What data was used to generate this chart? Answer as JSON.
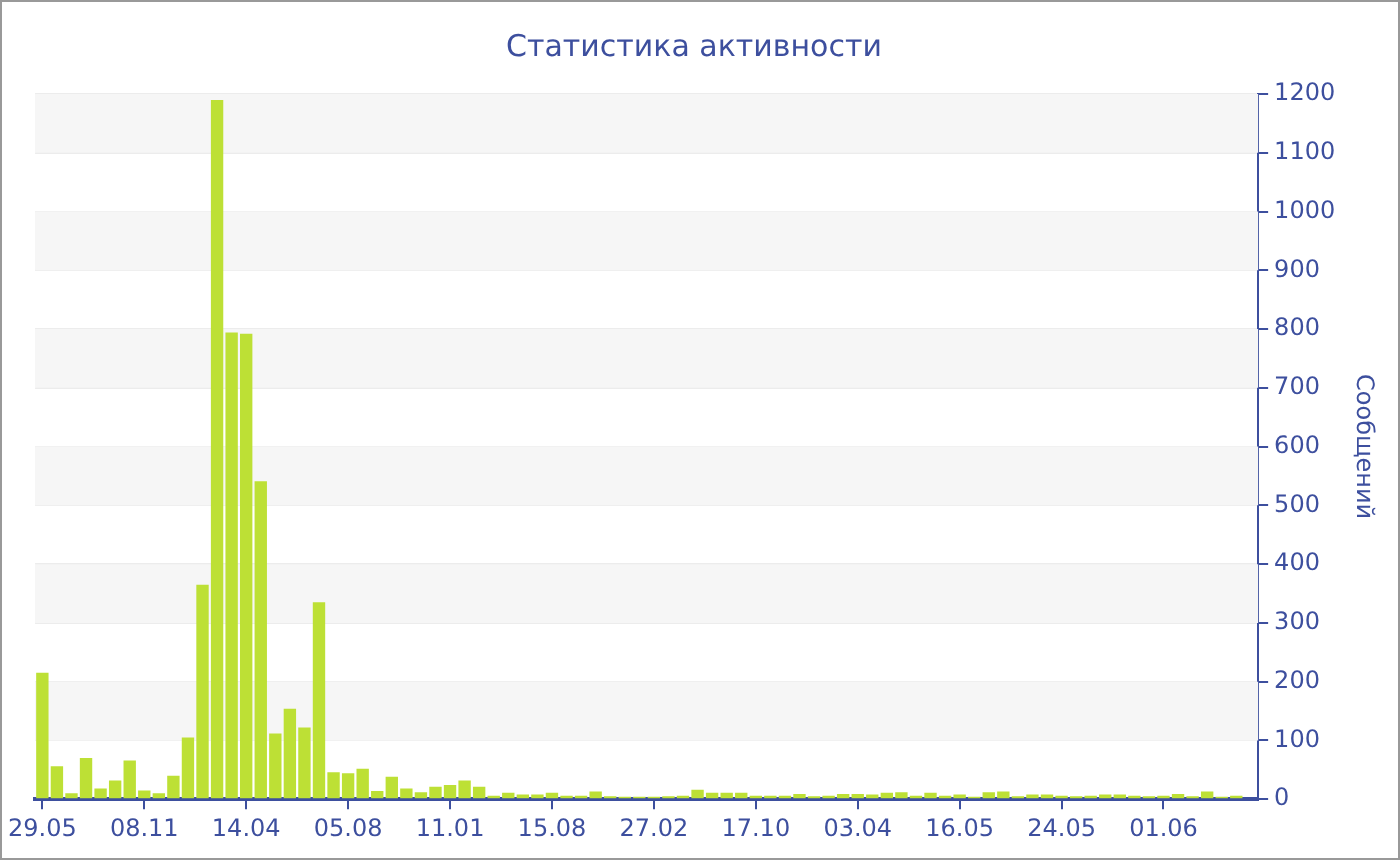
{
  "chart_data": {
    "type": "bar",
    "title": "Статистика активности",
    "ylabel": "Сообщений",
    "categories": [
      "29.05",
      null,
      null,
      null,
      null,
      null,
      null,
      "08.11",
      null,
      null,
      null,
      null,
      null,
      null,
      "14.04",
      null,
      null,
      null,
      null,
      null,
      null,
      "05.08",
      null,
      null,
      null,
      null,
      null,
      null,
      "11.01",
      null,
      null,
      null,
      null,
      null,
      null,
      "15.08",
      null,
      null,
      null,
      null,
      null,
      null,
      "27.02",
      null,
      null,
      null,
      null,
      null,
      null,
      "17.10",
      null,
      null,
      null,
      null,
      null,
      null,
      "03.04",
      null,
      null,
      null,
      null,
      null,
      null,
      "16.05",
      null,
      null,
      null,
      null,
      null,
      null,
      "24.05",
      null,
      null,
      null,
      null,
      null,
      null,
      "01.06",
      null,
      null,
      null,
      null,
      null,
      null
    ],
    "values": [
      215,
      56,
      10,
      70,
      18,
      32,
      66,
      15,
      10,
      40,
      105,
      365,
      1190,
      794,
      792,
      541,
      112,
      154,
      122,
      335,
      46,
      44,
      52,
      14,
      38,
      18,
      12,
      21,
      24,
      32,
      21,
      6,
      11,
      8,
      8,
      11,
      6,
      6,
      13,
      5,
      4,
      4,
      4,
      5,
      6,
      16,
      11,
      11,
      11,
      6,
      6,
      6,
      9,
      5,
      6,
      9,
      9,
      8,
      11,
      12,
      6,
      11,
      6,
      8,
      4,
      12,
      13,
      5,
      8,
      8,
      6,
      5,
      6,
      8,
      8,
      6,
      5,
      6,
      9,
      5,
      13,
      4,
      6,
      null
    ],
    "color": "#bde035",
    "ylim": [
      0,
      1200
    ],
    "yticks": [
      0,
      100,
      200,
      300,
      400,
      500,
      600,
      700,
      800,
      900,
      1000,
      1100,
      1200
    ],
    "grid": true
  }
}
